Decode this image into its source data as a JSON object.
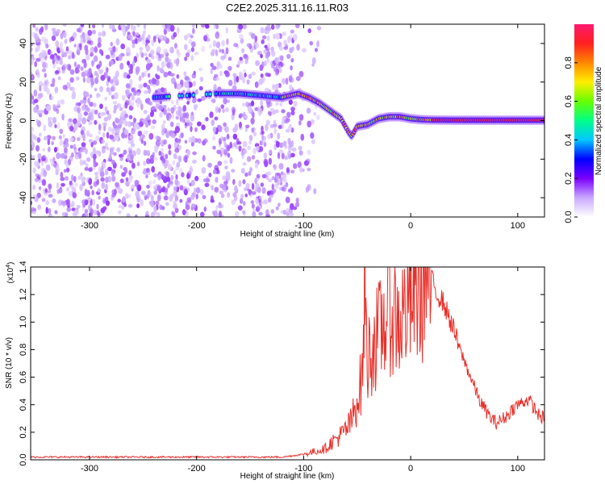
{
  "title": "C2E2.2025.311.16.11.R03",
  "chart_data": [
    {
      "type": "heatmap",
      "xlabel": "Height of straight line (km)",
      "ylabel": "Frequency (Hz)",
      "xlim": [
        -355,
        125
      ],
      "ylim": [
        -50,
        50
      ],
      "x_ticks": [
        -300,
        -200,
        -100,
        0,
        100
      ],
      "y_ticks": [
        -40,
        -20,
        0,
        20,
        40
      ],
      "colorbar": {
        "label": "Normalized spectral amplitude",
        "range": [
          0,
          1
        ],
        "ticks": [
          0.0,
          0.2,
          0.4,
          0.6,
          0.8
        ],
        "tick_labels": [
          "0.0",
          "0.2",
          "0.4",
          "0.6",
          "0.8"
        ],
        "colormap": [
          "#ffffff",
          "#c9a8ff",
          "#7a00ff",
          "#0000ff",
          "#00c8ff",
          "#00ff88",
          "#66ff00",
          "#ffee00",
          "#ff8800",
          "#ff2020",
          "#ff1a6e"
        ]
      },
      "ridge": {
        "x": [
          -240,
          -180,
          -160,
          -140,
          -120,
          -105,
          -95,
          -85,
          -75,
          -65,
          -58,
          -55,
          -50,
          -40,
          -30,
          -20,
          -10,
          0,
          10,
          20,
          50,
          80,
          100,
          125
        ],
        "y": [
          12,
          14,
          14,
          13,
          12,
          14,
          12,
          9,
          5,
          1,
          -6,
          -8,
          -3,
          -2,
          1,
          2,
          2,
          1,
          0.5,
          0.3,
          0.2,
          0.2,
          0.2,
          0.2
        ]
      }
    },
    {
      "type": "line",
      "xlabel": "Height of straight line (km)",
      "ylabel": "SNR (10 * v/v)",
      "scale_label": "(x10",
      "scale_exponent": "4",
      "xlim": [
        -355,
        125
      ],
      "ylim": [
        0,
        1.4
      ],
      "x_ticks": [
        -300,
        -200,
        -100,
        0,
        100
      ],
      "y_ticks": [
        0.0,
        0.2,
        0.4,
        0.6,
        0.8,
        1.0,
        1.2,
        1.4
      ],
      "y_tick_labels": [
        "0.0",
        "0.2",
        "0.4",
        "0.6",
        "0.8",
        "1.0",
        "1.2",
        "1.4"
      ],
      "series": [
        {
          "color": "#e8302a",
          "x": [
            -355,
            -300,
            -250,
            -200,
            -150,
            -120,
            -110,
            -100,
            -90,
            -80,
            -75,
            -70,
            -65,
            -60,
            -55,
            -50,
            -45,
            -43,
            -42,
            -40,
            -38,
            -35,
            -30,
            -25,
            -20,
            -15,
            -10,
            -5,
            0,
            5,
            10,
            15,
            20,
            25,
            30,
            35,
            40,
            45,
            50,
            55,
            60,
            65,
            70,
            75,
            80,
            85,
            90,
            95,
            100,
            105,
            110,
            115,
            120,
            125
          ],
          "y": [
            0.02,
            0.02,
            0.02,
            0.02,
            0.02,
            0.02,
            0.03,
            0.04,
            0.06,
            0.08,
            0.12,
            0.15,
            0.18,
            0.22,
            0.28,
            0.45,
            0.6,
            1.4,
            1.0,
            0.7,
            0.8,
            0.85,
            0.9,
            1.0,
            1.1,
            1.05,
            1.0,
            1.1,
            1.15,
            1.2,
            1.25,
            1.28,
            1.3,
            1.2,
            1.15,
            1.05,
            0.95,
            0.82,
            0.72,
            0.62,
            0.52,
            0.42,
            0.36,
            0.3,
            0.27,
            0.29,
            0.32,
            0.37,
            0.4,
            0.42,
            0.44,
            0.38,
            0.32,
            0.3
          ]
        }
      ]
    }
  ]
}
